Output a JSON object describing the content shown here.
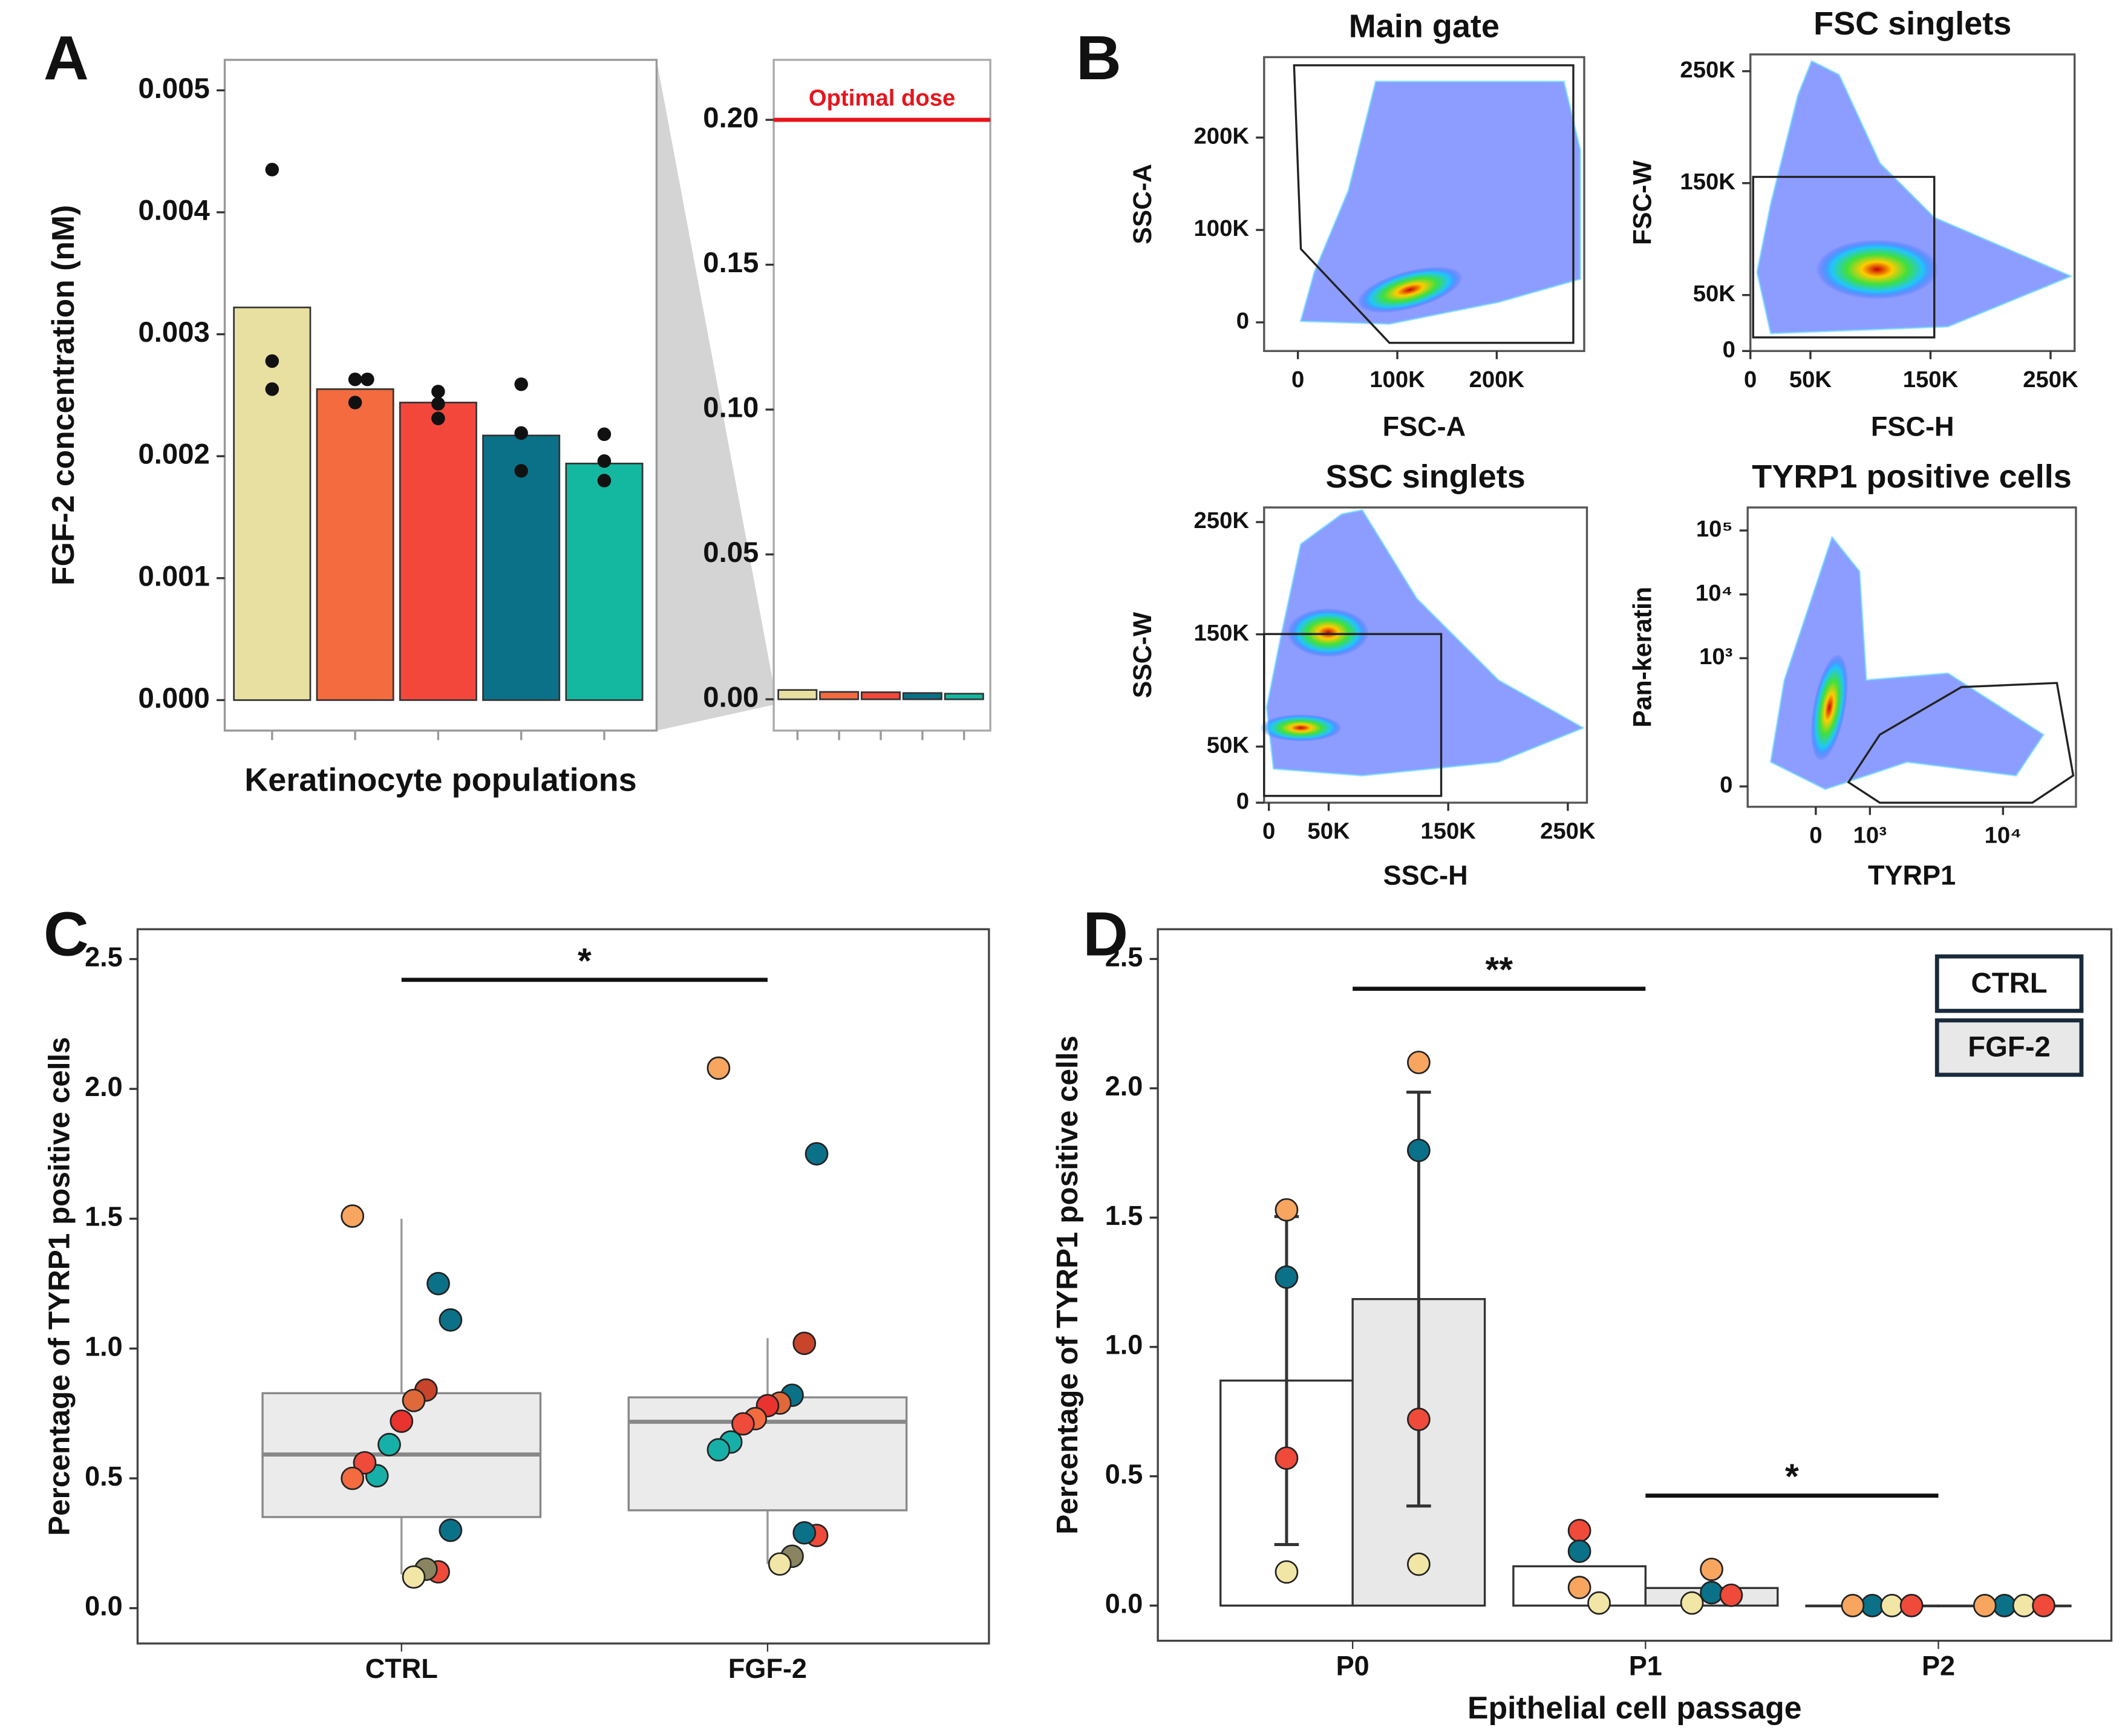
{
  "panels": [
    "A",
    "B",
    "C",
    "D"
  ],
  "chart_data": [
    {
      "type": "bar",
      "ylabel": "FGF-2 concentration (nM)",
      "xlabel": "Keratinocyte populations",
      "values": [
        0.00322,
        0.00255,
        0.00244,
        0.00217,
        0.00194
      ],
      "colors": [
        "#e8e0a0",
        "#f36b3f",
        "#f4473c",
        "#0b7188",
        "#14b8a0"
      ],
      "points": [
        [
          0.00435,
          0.00278,
          0.00255
        ],
        [
          0.00263,
          0.00263,
          0.00244
        ],
        [
          0.00253,
          0.00243,
          0.00231
        ],
        [
          0.00259,
          0.00219,
          0.00188
        ],
        [
          0.00218,
          0.00196,
          0.0018
        ]
      ],
      "point_color": "#111111",
      "ylim": [
        -0.00025,
        0.00525
      ],
      "yticks": [
        {
          "value": 0,
          "label": "0.000"
        },
        0.001,
        0.002,
        0.003,
        0.004,
        0.005
      ]
    },
    {
      "type": "bar",
      "values": [
        0.00322,
        0.00255,
        0.00244,
        0.00217,
        0.00194
      ],
      "colors": [
        "#e8e0a0",
        "#f36b3f",
        "#f4473c",
        "#0b7188",
        "#14b8a0"
      ],
      "ylim": [
        -0.0108,
        0.2207
      ],
      "yticks": [
        {
          "value": 0,
          "label": "0.00"
        },
        0.05,
        {
          "value": 0.1,
          "label": "0.10"
        },
        0.15,
        {
          "value": 0.2,
          "label": "0.20"
        }
      ],
      "hline": {
        "value": 0.2,
        "label": "Optimal dose",
        "color": "#e8141c"
      }
    },
    {
      "type": "density",
      "title": "Main gate",
      "xlabel": "FSC-A",
      "ylabel": "SSC-A",
      "xlim": [
        -34000,
        288000
      ],
      "ylim": [
        -31000,
        287000
      ],
      "xticks": [
        0,
        {
          "value": 100000,
          "label": "100K"
        },
        {
          "value": 200000,
          "label": "200K"
        }
      ],
      "yticks": [
        0,
        {
          "value": 100000,
          "label": "100K"
        },
        {
          "value": 200000,
          "label": "200K"
        }
      ]
    },
    {
      "type": "density",
      "title": "FSC singlets",
      "xlabel": "FSC-H",
      "ylabel": "FSC-W",
      "xlim": [
        0,
        270000
      ],
      "ylim": [
        0,
        265000
      ],
      "xticks": [
        0,
        {
          "value": 50000,
          "label": "50K"
        },
        {
          "value": 150000,
          "label": "150K"
        },
        {
          "value": 250000,
          "label": "250K"
        }
      ],
      "yticks": [
        0,
        {
          "value": 50000,
          "label": "50K"
        },
        {
          "value": 150000,
          "label": "150K"
        },
        {
          "value": 250000,
          "label": "250K"
        }
      ]
    },
    {
      "type": "density",
      "title": "SSC singlets",
      "xlabel": "SSC-H",
      "ylabel": "SSC-W",
      "xlim": [
        -4000,
        266000
      ],
      "ylim": [
        0,
        263000
      ],
      "xticks": [
        0,
        {
          "value": 50000,
          "label": "50K"
        },
        {
          "value": 150000,
          "label": "150K"
        },
        {
          "value": 250000,
          "label": "250K"
        }
      ],
      "yticks": [
        0,
        {
          "value": 50000,
          "label": "50K"
        },
        {
          "value": 150000,
          "label": "150K"
        },
        {
          "value": 250000,
          "label": "250K"
        }
      ]
    },
    {
      "type": "density",
      "title": "TYRP1 positive cells",
      "xlabel": "TYRP1",
      "ylabel": "Pan-keratin",
      "xscale": "symlog",
      "xlinthresh": 1000,
      "yscale": "symlog",
      "ylinthresh": 10,
      "xlim": [
        -1393,
        27000
      ],
      "ylim": [
        -10.8,
        229000
      ],
      "xticks": [
        0,
        {
          "value": 1000,
          "label": "10³"
        },
        {
          "value": 10000,
          "label": "10⁴"
        }
      ],
      "yticks": [
        0,
        {
          "value": 1000,
          "label": "10³"
        },
        {
          "value": 10000,
          "label": "10⁴"
        },
        {
          "value": 100000,
          "label": "10⁵"
        }
      ]
    },
    {
      "type": "box",
      "ylabel": "Percentage of TYRP1 positive cells",
      "categories": [
        "CTRL",
        "FGF-2"
      ],
      "box_color": "#ebebeb",
      "boxes": [
        {
          "q1": 0.351,
          "median": 0.592,
          "q3": 0.828,
          "whisker_low": 0.13,
          "whisker_high": 1.5
        },
        {
          "q1": 0.377,
          "median": 0.718,
          "q3": 0.812,
          "whisker_low": 0.17,
          "whisker_high": 1.04
        }
      ],
      "points": [
        [
          1.51,
          1.11,
          1.25,
          0.84,
          0.8,
          0.72,
          0.63,
          0.51,
          0.56,
          0.5,
          0.3,
          0.14,
          0.15,
          0.12
        ],
        [
          2.08,
          1.75,
          1.02,
          0.82,
          0.79,
          0.78,
          0.73,
          0.71,
          0.64,
          0.61,
          0.28,
          0.29,
          0.2,
          0.17
        ]
      ],
      "point_colors": [
        [
          "#f8a55f",
          "#0b7188",
          "#0b7188",
          "#c8442a",
          "#e0693c",
          "#e8332f",
          "#17b0a8",
          "#17b0a8",
          "#f04a3a",
          "#f36b3f",
          "#0b7188",
          "#f04a3a",
          "#8a8560",
          "#f1e6a6"
        ],
        [
          "#f8a55f",
          "#0b7188",
          "#c8442a",
          "#0b7188",
          "#e0693c",
          "#e8332f",
          "#f36b3f",
          "#f04a3a",
          "#17b0a8",
          "#17b0a8",
          "#f04a3a",
          "#0b7188",
          "#8a8560",
          "#f1e6a6"
        ]
      ],
      "ylim": [
        -0.136,
        2.615
      ],
      "yticks": [
        {
          "value": 0,
          "label": "0.0"
        },
        0.5,
        {
          "value": 1,
          "label": "1.0"
        },
        1.5,
        {
          "value": 2,
          "label": "2.0"
        },
        2.5
      ],
      "significance": [
        {
          "label": "*",
          "y": 2.42,
          "from": 0,
          "to": 1
        }
      ]
    },
    {
      "type": "grouped_bar",
      "ylabel": "Percentage of TYRP1 positive cells",
      "xlabel": "Epithelial cell passage",
      "categories": [
        "P0",
        "P1",
        "P2"
      ],
      "series": [
        {
          "name": "CTRL",
          "color": "#ffffff",
          "values": [
            0.87,
            0.152,
            0
          ],
          "errors": [
            0.634,
            null,
            null
          ],
          "points": [
            [
              1.53,
              1.27,
              0.57,
              0.13
            ],
            [
              0.29,
              0.21,
              0.07,
              0.01
            ],
            [
              0,
              0,
              0,
              0
            ]
          ],
          "point_colors": [
            [
              "#f8a55f",
              "#0b7188",
              "#f04a3a",
              "#f1e6a6"
            ],
            [
              "#f04a3a",
              "#0b7188",
              "#f8a55f",
              "#f1e6a6"
            ],
            [
              "#0b7188",
              "#f1e6a6",
              "#f8a55f",
              "#f04a3a"
            ]
          ]
        },
        {
          "name": "FGF-2",
          "color": "#e8e8e8",
          "values": [
            1.185,
            0.068,
            0
          ],
          "errors": [
            0.8,
            null,
            null
          ],
          "points": [
            [
              2.1,
              1.76,
              0.72,
              0.16
            ],
            [
              0.14,
              0.05,
              0.04,
              0.01
            ],
            [
              0,
              0,
              0,
              0
            ]
          ],
          "point_colors": [
            [
              "#f8a55f",
              "#0b7188",
              "#f04a3a",
              "#f1e6a6"
            ],
            [
              "#f8a55f",
              "#0b7188",
              "#f04a3a",
              "#f1e6a6"
            ],
            [
              "#0b7188",
              "#f1e6a6",
              "#f8a55f",
              "#f04a3a"
            ]
          ]
        }
      ],
      "ylim": [
        -0.136,
        2.615
      ],
      "yticks": [
        {
          "value": 0,
          "label": "0.0"
        },
        0.5,
        {
          "value": 1,
          "label": "1.0"
        },
        1.5,
        {
          "value": 2,
          "label": "2.0"
        },
        2.5
      ],
      "significance": [
        {
          "label": "**",
          "y": 2.385,
          "from": 0,
          "to": 1
        },
        {
          "label": "*",
          "y": 0.425,
          "from": 1,
          "to": 2
        }
      ],
      "legend": "top-right"
    }
  ]
}
